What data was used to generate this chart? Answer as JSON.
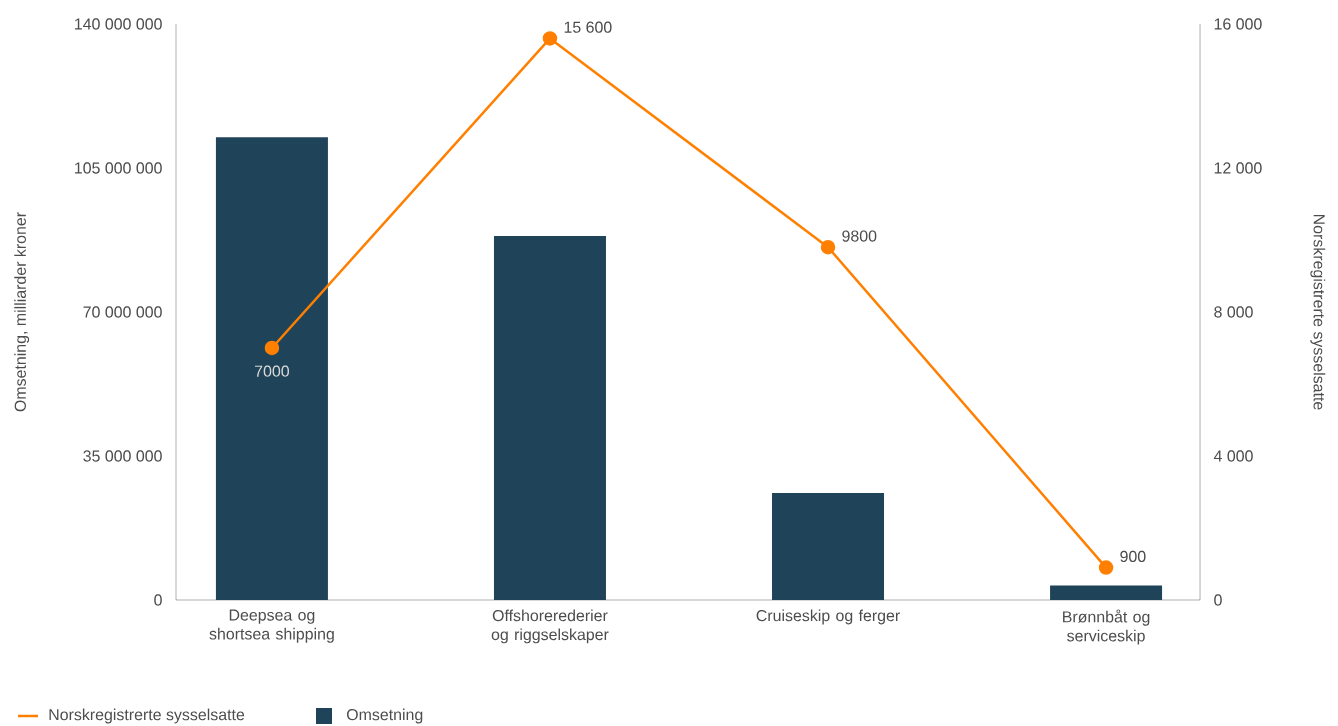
{
  "chart_data": {
    "type": "bar",
    "ylabel": "Omsetning, milliarder kroner",
    "y2label": "Norskregistrerte sysselsatte",
    "categories": [
      "Deepsea og shortsea shipping",
      "Offshorerederier og riggselskaper",
      "Cruiseskip og ferger",
      "Brønnbåt og serviceskip"
    ],
    "series": [
      {
        "name": "Norskregistrerte sysselsatte",
        "type": "line",
        "axis": "y2",
        "color": "#ff7f00",
        "values": [
          7000,
          15600,
          9800,
          900
        ],
        "value_labels": [
          "7000",
          "15 600",
          "9800",
          "900"
        ]
      },
      {
        "name": "Omsetning",
        "color": "#1f4459",
        "values": [
          112500000,
          88500000,
          26000000,
          3500000
        ]
      }
    ],
    "ylim": [
      0,
      140000000
    ],
    "yticks": [
      0,
      {
        "value": 35000000,
        "label": "35 000 000"
      },
      {
        "value": 70000000,
        "label": "70 000 000"
      },
      {
        "value": 105000000,
        "label": "105 000 000"
      },
      {
        "value": 140000000,
        "label": "140 000 000"
      }
    ],
    "y2lim": [
      0,
      16000
    ],
    "y2ticks": [
      0,
      {
        "value": 4000,
        "label": "4 000"
      },
      {
        "value": 8000,
        "label": "8 000"
      },
      {
        "value": 12000,
        "label": "12 000"
      },
      {
        "value": 16000,
        "label": "16 000"
      }
    ],
    "marker": "circle",
    "legend": "bottom left",
    "grid": false
  }
}
